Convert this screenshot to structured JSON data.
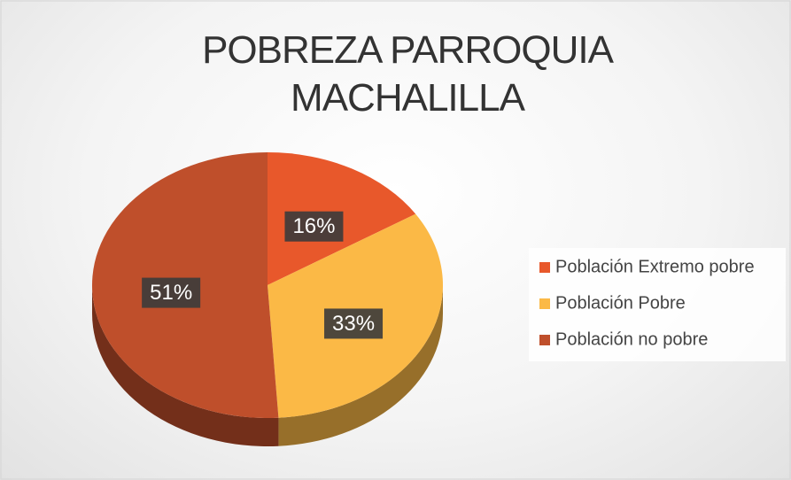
{
  "chart_data": {
    "type": "pie",
    "title": "POBREZA PARROQUIA MACHALILLA",
    "categories": [
      "Población Extremo pobre",
      "Población Pobre",
      "Población no pobre"
    ],
    "values": [
      16,
      33,
      51
    ],
    "value_labels": [
      "16%",
      "33%",
      "51%"
    ],
    "colors": [
      "#e8582b",
      "#fbb946",
      "#bf4f2b"
    ],
    "legend": "right"
  }
}
